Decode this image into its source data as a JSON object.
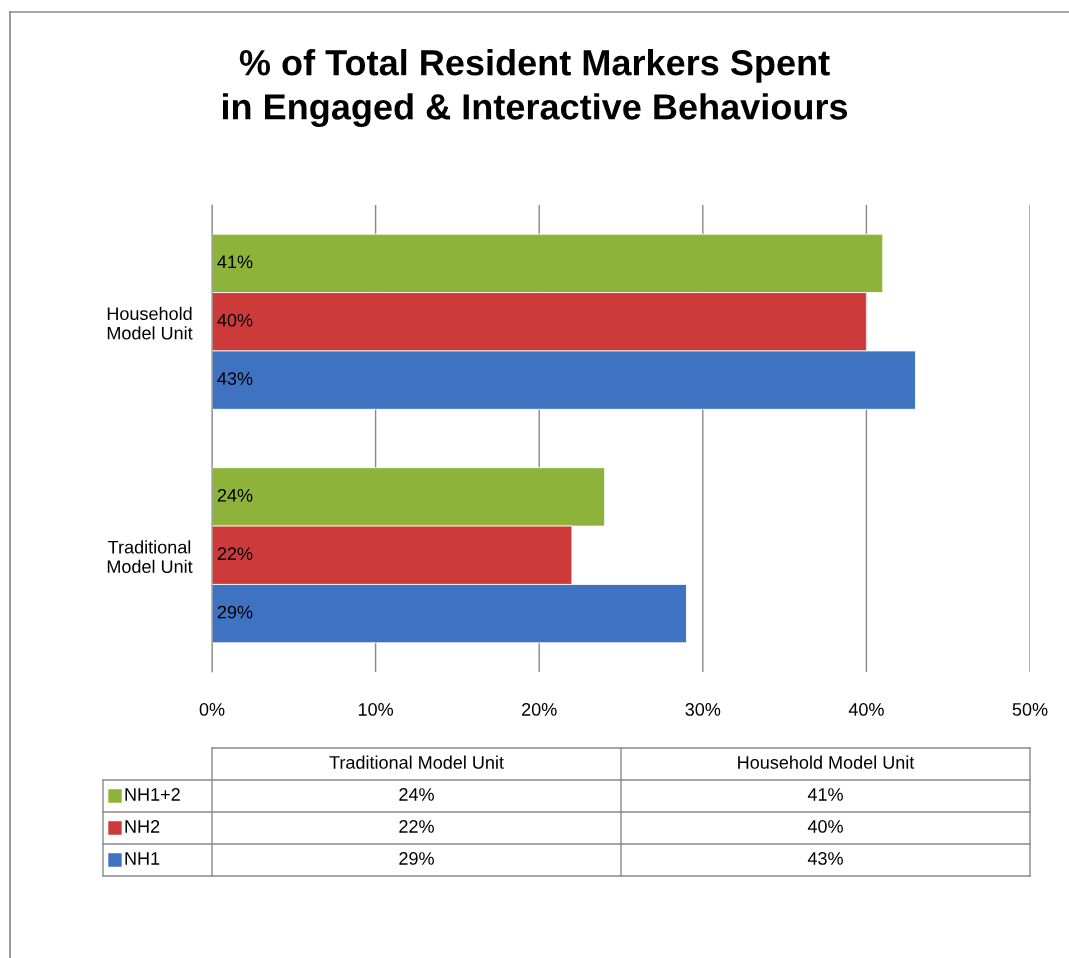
{
  "chart_data": {
    "type": "bar",
    "orientation": "horizontal",
    "title": "% of Total Resident Markers Spent in Engaged & Interactive Behaviours",
    "categories": [
      "Household Model Unit",
      "Traditional Model Unit"
    ],
    "series": [
      {
        "name": "NH1+2",
        "color": "#8db33b",
        "values": [
          41,
          24
        ],
        "value_labels": [
          "41%",
          "24%"
        ]
      },
      {
        "name": "NH2",
        "color": "#cc3b3a",
        "values": [
          40,
          22
        ],
        "value_labels": [
          "40%",
          "22%"
        ]
      },
      {
        "name": "NH1",
        "color": "#3f73c2",
        "values": [
          43,
          29
        ],
        "value_labels": [
          "43%",
          "29%"
        ]
      }
    ],
    "xlim": [
      0,
      50
    ],
    "xticks": [
      {
        "value": 0,
        "label": "0%"
      },
      {
        "value": 10,
        "label": "10%"
      },
      {
        "value": 20,
        "label": "20%"
      },
      {
        "value": 30,
        "label": "30%"
      },
      {
        "value": 40,
        "label": "40%"
      },
      {
        "value": 50,
        "label": "50%"
      }
    ],
    "grid": "x",
    "legend": "bottom"
  }
}
